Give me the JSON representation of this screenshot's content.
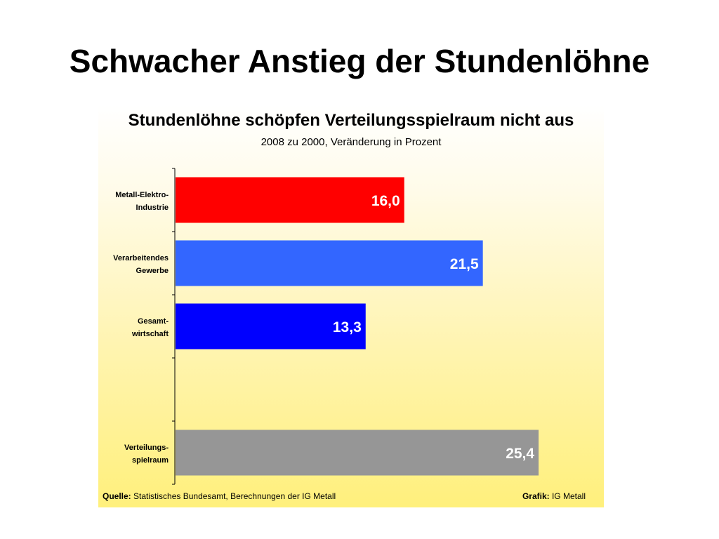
{
  "slide": {
    "title": "Schwacher Anstieg der Stundenlöhne"
  },
  "chart_data": {
    "type": "bar",
    "orientation": "horizontal",
    "title": "Stundenlöhne schöpfen Verteilungsspielraum nicht aus",
    "subtitle": "2008 zu 2000, Veränderung in Prozent",
    "categories": [
      [
        "Metall-Elektro-",
        "Industrie"
      ],
      [
        "Verarbeitendes",
        "Gewerbe"
      ],
      [
        "Gesamt-",
        "wirtschaft"
      ],
      [
        "",
        ""
      ],
      [
        "Verteilungs-",
        "spielraum"
      ]
    ],
    "values": [
      16.0,
      21.5,
      13.3,
      null,
      25.4
    ],
    "value_labels": [
      "16,0",
      "21,5",
      "13,3",
      "",
      "25,4"
    ],
    "colors": [
      "#ff0000",
      "#3366ff",
      "#0000ff",
      "",
      "#969696"
    ],
    "xlim": [
      0,
      28
    ],
    "grid": false,
    "legend": "none"
  },
  "footer": {
    "source_label": "Quelle:",
    "source_text": " Statistisches Bundesamt, Berechnungen der IG Metall",
    "grafik_label": "Grafik:",
    "grafik_text": " IG Metall"
  }
}
